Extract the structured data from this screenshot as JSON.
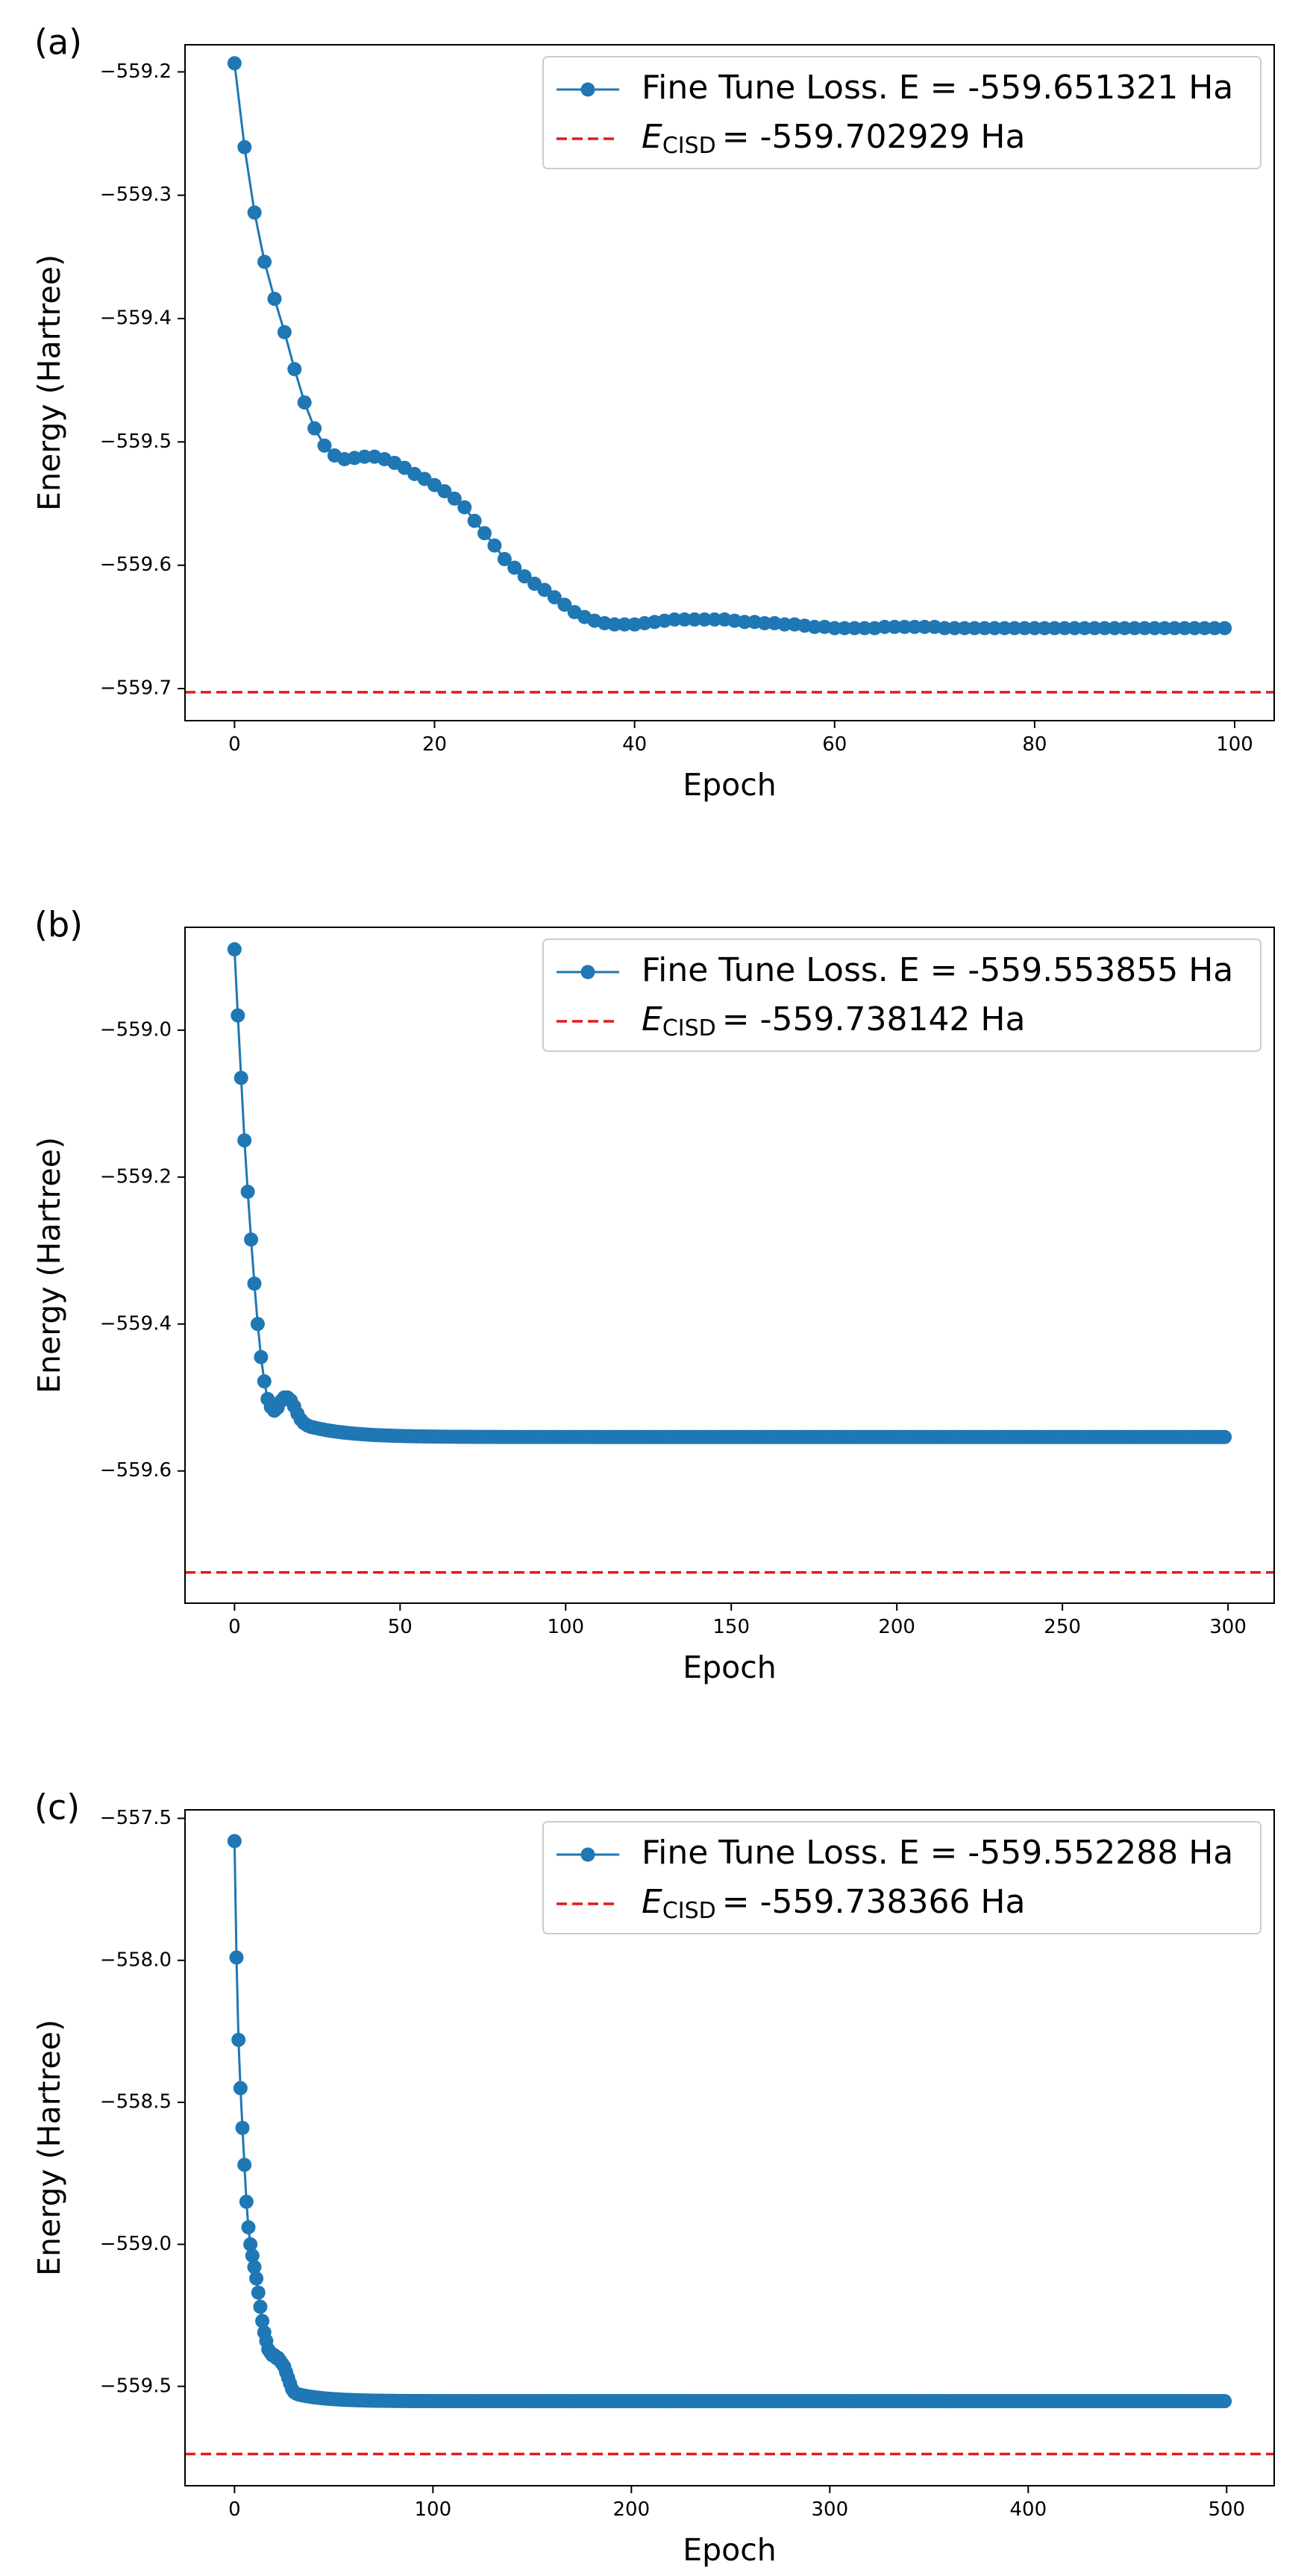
{
  "chart_data": [
    {
      "type": "line",
      "panel_label": "(a)",
      "xlabel": "Epoch",
      "ylabel": "Energy (Hartree)",
      "xlim": [
        -4.95,
        103.95
      ],
      "ylim": [
        -559.726,
        -559.178
      ],
      "xticks": [
        0,
        20,
        40,
        60,
        80,
        100
      ],
      "yticks": [
        -559.2,
        -559.3,
        -559.4,
        -559.5,
        -559.6,
        -559.7
      ],
      "xtick_labels": [
        "0",
        "20",
        "40",
        "60",
        "80",
        "100"
      ],
      "ytick_labels": [
        "−559.2",
        "−559.3",
        "−559.4",
        "−559.5",
        "−559.6",
        "−559.7"
      ],
      "grid": false,
      "legend_position": "top-right",
      "series": [
        {
          "name": "Fine Tune Loss. E = -559.651321 Ha",
          "color": "#1f77b4",
          "marker": "circle",
          "x_start": 0,
          "x_step": 1,
          "values": [
            -559.193,
            -559.261,
            -559.314,
            -559.354,
            -559.384,
            -559.411,
            -559.441,
            -559.468,
            -559.489,
            -559.503,
            -559.511,
            -559.514,
            -559.513,
            -559.512,
            -559.512,
            -559.514,
            -559.517,
            -559.521,
            -559.526,
            -559.53,
            -559.535,
            -559.54,
            -559.546,
            -559.553,
            -559.564,
            -559.574,
            -559.584,
            -559.595,
            -559.602,
            -559.609,
            -559.615,
            -559.62,
            -559.626,
            -559.632,
            -559.638,
            -559.642,
            -559.645,
            -559.647,
            -559.648,
            -559.648,
            -559.648,
            -559.647,
            -559.646,
            -559.645,
            -559.644,
            -559.644,
            -559.644,
            -559.644,
            -559.644,
            -559.644,
            -559.645,
            -559.646,
            -559.646,
            -559.647,
            -559.647,
            -559.648,
            -559.648,
            -559.649,
            -559.65,
            -559.65,
            -559.651,
            -559.651,
            -559.651,
            -559.651,
            -559.651,
            -559.65,
            -559.65,
            -559.65,
            -559.65,
            -559.65,
            -559.65,
            -559.651,
            -559.651,
            -559.651,
            -559.651,
            -559.651,
            -559.651,
            -559.651,
            -559.651,
            -559.651,
            -559.651,
            -559.651,
            -559.651,
            -559.651,
            -559.651,
            -559.651,
            -559.651,
            -559.651,
            -559.651,
            -559.651,
            -559.651,
            -559.651,
            -559.651,
            -559.651,
            -559.651,
            -559.651,
            -559.651,
            -559.651,
            -559.651,
            -559.651
          ]
        }
      ],
      "reference_lines": [
        {
          "name_label": "E",
          "name_sub": "CISD",
          "name_value": "= -559.702929 Ha",
          "y": -559.702929,
          "color": "#e41a1c",
          "style": "dashed"
        }
      ]
    },
    {
      "type": "line",
      "panel_label": "(b)",
      "xlabel": "Epoch",
      "ylabel": "Energy (Hartree)",
      "xlim": [
        -14.95,
        313.95
      ],
      "ylim": [
        -559.78,
        -558.86
      ],
      "xticks": [
        0,
        50,
        100,
        150,
        200,
        250,
        300
      ],
      "yticks": [
        -559.0,
        -559.2,
        -559.4,
        -559.6
      ],
      "xtick_labels": [
        "0",
        "50",
        "100",
        "150",
        "200",
        "250",
        "300"
      ],
      "ytick_labels": [
        "−559.0",
        "−559.2",
        "−559.4",
        "−559.6"
      ],
      "grid": false,
      "legend_position": "top-right",
      "series": [
        {
          "name": "Fine Tune Loss. E = -559.553855 Ha",
          "color": "#1f77b4",
          "marker": "circle",
          "x_start": 0,
          "x_step": 1,
          "count": 300,
          "values": [
            -558.89,
            -558.98,
            -559.065,
            -559.15,
            -559.22,
            -559.285,
            -559.345,
            -559.4,
            -559.445,
            -559.478,
            -559.502,
            -559.513,
            -559.518,
            -559.514,
            -559.505,
            -559.5,
            -559.5,
            -559.504,
            -559.512,
            -559.522,
            -559.53,
            -559.535,
            -559.538,
            -559.54,
            -559.541,
            -559.542
          ],
          "tail_value": -559.553855,
          "tail_from": 26,
          "tail_decay": 12
        }
      ],
      "reference_lines": [
        {
          "name_label": "E",
          "name_sub": "CISD",
          "name_value": "= -559.738142 Ha",
          "y": -559.738142,
          "color": "#e41a1c",
          "style": "dashed"
        }
      ]
    },
    {
      "type": "line",
      "panel_label": "(c)",
      "xlabel": "Epoch",
      "ylabel": "Energy (Hartree)",
      "xlim": [
        -24.95,
        523.95
      ],
      "ylim": [
        -559.85,
        -557.47
      ],
      "xticks": [
        0,
        100,
        200,
        300,
        400,
        500
      ],
      "yticks": [
        -557.5,
        -558.0,
        -558.5,
        -559.0,
        -559.5
      ],
      "xtick_labels": [
        "0",
        "100",
        "200",
        "300",
        "400",
        "500"
      ],
      "ytick_labels": [
        "−557.5",
        "−558.0",
        "−558.5",
        "−559.0",
        "−559.5"
      ],
      "grid": false,
      "legend_position": "top-right",
      "series": [
        {
          "name": "Fine Tune Loss. E = -559.552288 Ha",
          "color": "#1f77b4",
          "marker": "circle",
          "x_start": 0,
          "x_step": 1,
          "count": 500,
          "values": [
            -557.58,
            -557.99,
            -558.28,
            -558.45,
            -558.59,
            -558.72,
            -558.85,
            -558.94,
            -559.0,
            -559.04,
            -559.08,
            -559.12,
            -559.17,
            -559.22,
            -559.27,
            -559.31,
            -559.34,
            -559.37,
            -559.38,
            -559.39,
            -559.39,
            -559.4,
            -559.4,
            -559.41,
            -559.42,
            -559.43,
            -559.45,
            -559.47,
            -559.49,
            -559.51,
            -559.52,
            -559.525,
            -559.528,
            -559.53
          ],
          "tail_value": -559.552288,
          "tail_from": 34,
          "tail_decay": 15
        }
      ],
      "reference_lines": [
        {
          "name_label": "E",
          "name_sub": "CISD",
          "name_value": "= -559.738366 Ha",
          "y": -559.738366,
          "color": "#e41a1c",
          "style": "dashed"
        }
      ]
    }
  ]
}
